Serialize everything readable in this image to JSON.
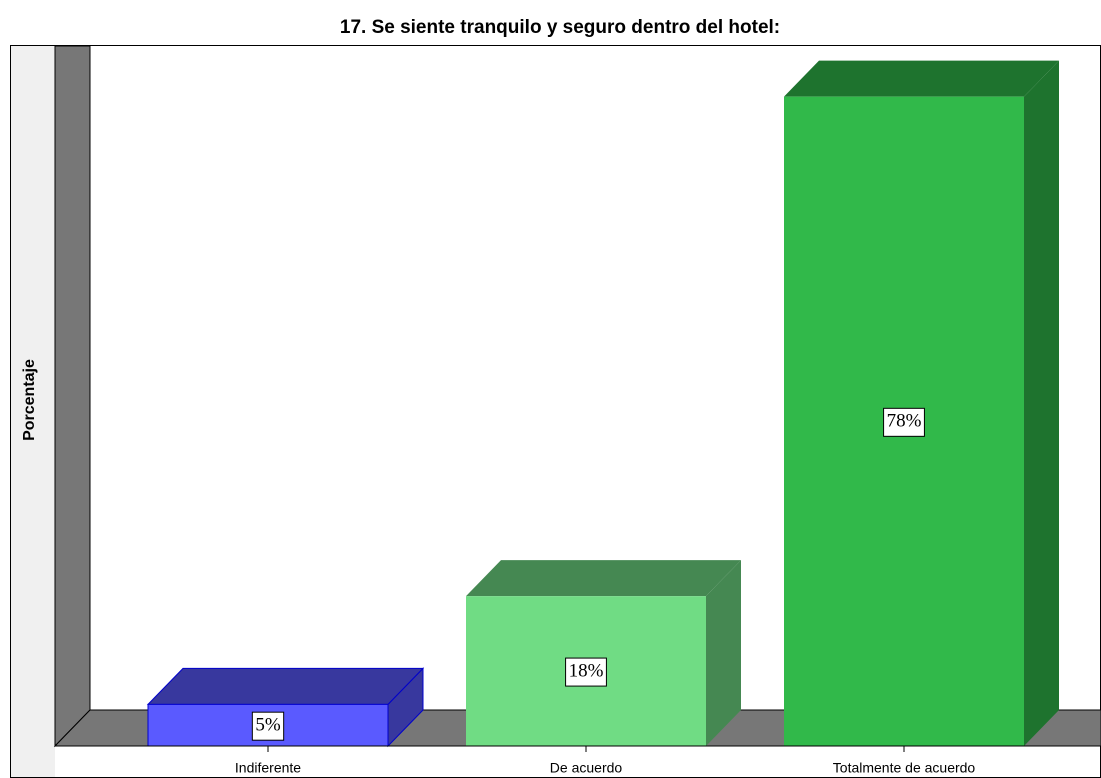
{
  "chart_data": {
    "type": "bar3d",
    "title": "17. Se siente tranquilo y seguro dentro del hotel:",
    "y_label": "Porcentaje",
    "categories": [
      "Indiferente",
      "De acuerdo",
      "Totalmente de acuerdo"
    ],
    "values": [
      5,
      18,
      78
    ],
    "value_labels": [
      "5%",
      "18%",
      "78%"
    ],
    "colors": [
      "#5a5aff",
      "#70dc84",
      "#31b94a"
    ],
    "ylim": [
      0,
      80
    ]
  }
}
